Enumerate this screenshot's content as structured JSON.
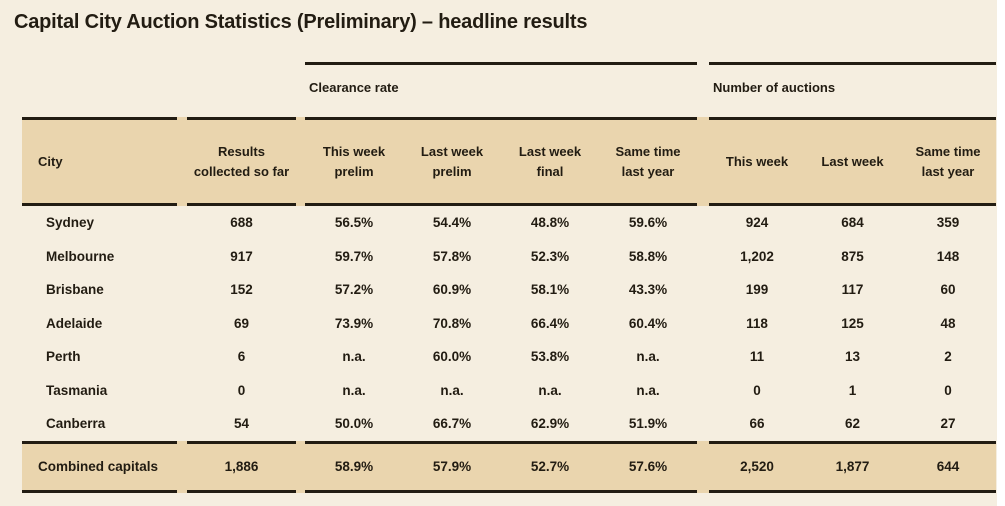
{
  "title": "Capital City Auction Statistics (Preliminary) – headline results",
  "colors": {
    "background": "#f5eee0",
    "band": "#ead5ae",
    "ink": "#221c12"
  },
  "chart_data": {
    "type": "table",
    "title": "Capital City Auction Statistics (Preliminary) – headline results",
    "column_groups": [
      {
        "label": "Clearance rate",
        "span": 4
      },
      {
        "label": "Number of auctions",
        "span": 3
      }
    ],
    "columns": [
      "City",
      "Results collected so far",
      "This week prelim",
      "Last week prelim",
      "Last week final",
      "Same time last year",
      "This week",
      "Last week",
      "Same time last year"
    ],
    "rows": [
      {
        "city": "Sydney",
        "values": [
          "688",
          "56.5%",
          "54.4%",
          "48.8%",
          "59.6%",
          "924",
          "684",
          "359"
        ],
        "highlight": false
      },
      {
        "city": "Melbourne",
        "values": [
          "917",
          "59.7%",
          "57.8%",
          "52.3%",
          "58.8%",
          "1,202",
          "875",
          "148"
        ],
        "highlight": false
      },
      {
        "city": "Brisbane",
        "values": [
          "152",
          "57.2%",
          "60.9%",
          "58.1%",
          "43.3%",
          "199",
          "117",
          "60"
        ],
        "highlight": false
      },
      {
        "city": "Adelaide",
        "values": [
          "69",
          "73.9%",
          "70.8%",
          "66.4%",
          "60.4%",
          "118",
          "125",
          "48"
        ],
        "highlight": false
      },
      {
        "city": "Perth",
        "values": [
          "6",
          "n.a.",
          "60.0%",
          "53.8%",
          "n.a.",
          "11",
          "13",
          "2"
        ],
        "highlight": false
      },
      {
        "city": "Tasmania",
        "values": [
          "0",
          "n.a.",
          "n.a.",
          "n.a.",
          "n.a.",
          "0",
          "1",
          "0"
        ],
        "highlight": false
      },
      {
        "city": "Canberra",
        "values": [
          "54",
          "50.0%",
          "66.7%",
          "62.9%",
          "51.9%",
          "66",
          "62",
          "27"
        ],
        "highlight": false
      },
      {
        "city": "Combined capitals",
        "values": [
          "1,886",
          "58.9%",
          "57.9%",
          "52.7%",
          "57.6%",
          "2,520",
          "1,877",
          "644"
        ],
        "highlight": true
      }
    ]
  }
}
